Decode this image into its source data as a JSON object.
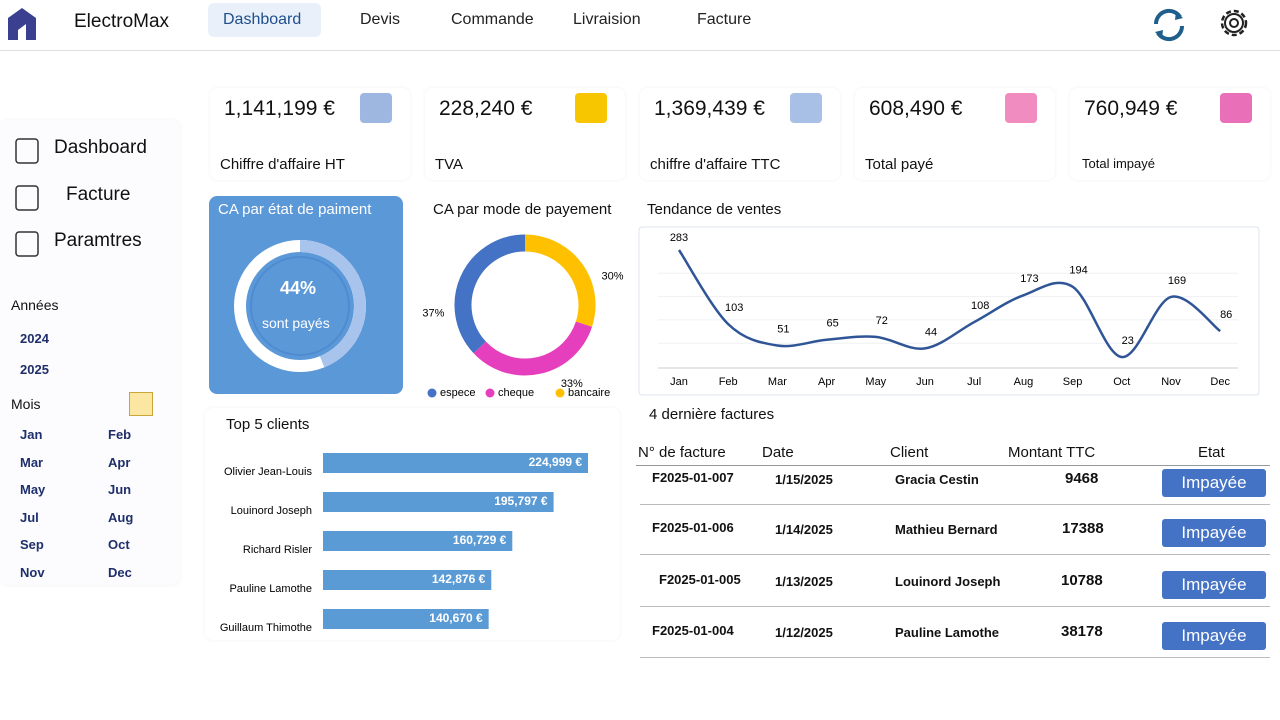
{
  "nav": {
    "brand": "ElectroMax",
    "tabs": [
      "Dashboard",
      "Devis",
      "Commande",
      "Livraision",
      "Facture"
    ]
  },
  "sidebar": {
    "menu": [
      "Dashboard",
      "Facture",
      "Paramtres"
    ],
    "years_label": "Années",
    "years": [
      "2024",
      "2025"
    ],
    "months_label": "Mois",
    "months": [
      "Jan",
      "Feb",
      "Mar",
      "Apr",
      "May",
      "Jun",
      "Jul",
      "Aug",
      "Sep",
      "Oct",
      "Nov",
      "Dec"
    ]
  },
  "kpis": [
    {
      "value": "1,141,199 €",
      "label": "Chiffre d'affaire HT"
    },
    {
      "value": "228,240 €",
      "label": "TVA"
    },
    {
      "value": "1,369,439 €",
      "label": "chiffre d'affaire TTC"
    },
    {
      "value": "608,490 €",
      "label": "Total payé"
    },
    {
      "value": "760,949 €",
      "label": "Total impayé"
    }
  ],
  "payment_state": {
    "type": "pie",
    "title": "CA par état de paiment",
    "value": 44,
    "value_label": "44%",
    "caption": "sont payés"
  },
  "payment_mode": {
    "type": "pie",
    "title": "CA par mode de payement",
    "categories": [
      "espece",
      "cheque",
      "bancaire"
    ],
    "values": [
      37,
      33,
      30
    ],
    "value_labels": [
      "37%",
      "33%",
      "30%"
    ],
    "colors": [
      "#4472c4",
      "#e63fbd",
      "#ffc000"
    ]
  },
  "sales_trend": {
    "type": "line",
    "title": "Tendance de ventes",
    "categories": [
      "Jan",
      "Feb",
      "Mar",
      "Apr",
      "May",
      "Jun",
      "Jul",
      "Aug",
      "Sep",
      "Oct",
      "Nov",
      "Dec"
    ],
    "values": [
      283,
      103,
      51,
      65,
      72,
      44,
      108,
      173,
      194,
      23,
      169,
      86
    ],
    "color": "#2f5597"
  },
  "top_clients": {
    "type": "bar",
    "title": "Top 5 clients",
    "categories": [
      "Olivier Jean-Louis",
      "Louinord Joseph",
      "Richard Risler",
      "Pauline Lamothe",
      "Guillaum Thimothe"
    ],
    "values": [
      224999,
      195797,
      160729,
      142876,
      140670
    ],
    "value_labels": [
      "224,999 €",
      "195,797 €",
      "160,729 €",
      "142,876 €",
      "140,670 €"
    ],
    "color": "#5b9bd5"
  },
  "invoices": {
    "title": "4 dernière factures",
    "columns": [
      "N° de facture",
      "Date",
      "Client",
      "Montant TTC",
      "Etat"
    ],
    "rows": [
      [
        "F2025-01-007",
        "1/15/2025",
        "Gracia Cestin",
        9468,
        "Impayée"
      ],
      [
        "F2025-01-006",
        "1/14/2025",
        "Mathieu Bernard",
        17388,
        "Impayée"
      ],
      [
        "F2025-01-005",
        "1/13/2025",
        "Louinord Joseph",
        10788,
        "Impayée"
      ],
      [
        "F2025-01-004",
        "1/12/2025",
        "Pauline Lamothe",
        38178,
        "Impayée"
      ]
    ]
  }
}
